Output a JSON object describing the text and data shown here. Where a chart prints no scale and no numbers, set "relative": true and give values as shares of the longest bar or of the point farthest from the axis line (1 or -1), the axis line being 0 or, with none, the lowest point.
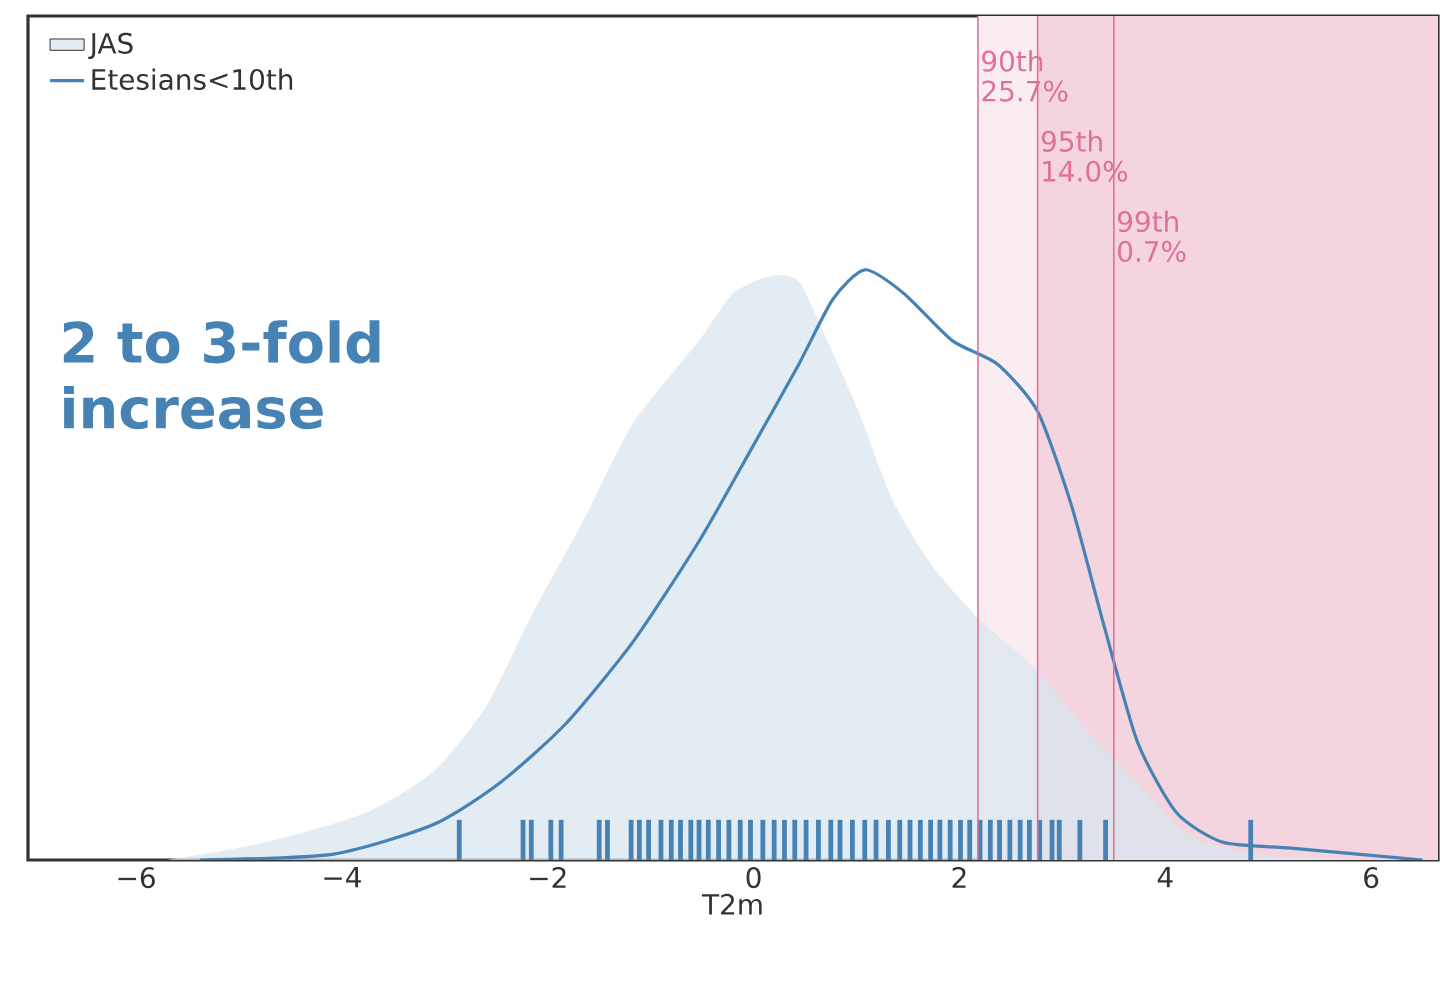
{
  "chart_data": {
    "type": "area",
    "relative": true,
    "xlabel": "T2m",
    "xlim": [
      -7.05,
      6.65
    ],
    "xticks": [
      {
        "value": -6,
        "label": "−6"
      },
      {
        "value": -4,
        "label": "−4"
      },
      {
        "value": -2,
        "label": "−2"
      },
      0,
      2,
      4,
      6
    ],
    "legend": "top left",
    "series": [
      {
        "name": "JAS",
        "color": "#dae5ef",
        "x": [
          -5.71,
          -4.74,
          -3.77,
          -3.11,
          -2.6,
          -2.14,
          -1.64,
          -1.17,
          -0.53,
          -0.2,
          0.18,
          0.44,
          0.69,
          1.02,
          1.35,
          1.73,
          2.18,
          2.76,
          3.29,
          3.73,
          4.25,
          4.89,
          5.86
        ],
        "values": [
          0,
          0.03,
          0.08,
          0.15,
          0.26,
          0.42,
          0.58,
          0.74,
          0.88,
          0.96,
          0.99,
          0.98,
          0.89,
          0.76,
          0.61,
          0.5,
          0.41,
          0.32,
          0.21,
          0.13,
          0.04,
          0.01,
          0
        ]
      },
      {
        "name": "Etesians<10th",
        "type": "line",
        "color": "#4682b4",
        "x": [
          -5.38,
          -4.08,
          -3.11,
          -2.47,
          -1.83,
          -1.17,
          -0.53,
          -0.01,
          0.44,
          0.77,
          1.08,
          1.46,
          1.93,
          2.37,
          2.76,
          3.09,
          3.4,
          3.73,
          4.11,
          4.56,
          5.22,
          6.5
        ],
        "values": [
          0,
          0.01,
          0.06,
          0.13,
          0.23,
          0.37,
          0.54,
          0.7,
          0.84,
          0.95,
          1.0,
          0.96,
          0.88,
          0.84,
          0.76,
          0.6,
          0.4,
          0.2,
          0.08,
          0.03,
          0.02,
          0
        ]
      },
      {
        "type": "bar",
        "color": "#4682b4",
        "x": [
          -2.86,
          -2.24,
          -2.16,
          -1.97,
          -1.87,
          -1.5,
          -1.42,
          -1.19,
          -1.11,
          -1.02,
          -0.9,
          -0.8,
          -0.71,
          -0.61,
          -0.53,
          -0.44,
          -0.34,
          -0.24,
          -0.13,
          -0.03,
          0.09,
          0.2,
          0.3,
          0.4,
          0.51,
          0.63,
          0.75,
          0.84,
          0.96,
          1.08,
          1.19,
          1.31,
          1.42,
          1.52,
          1.62,
          1.72,
          1.81,
          1.91,
          2.01,
          2.1,
          2.2,
          2.3,
          2.39,
          2.49,
          2.59,
          2.68,
          2.78,
          2.9,
          2.97,
          3.17,
          3.42,
          4.83
        ],
        "values": [
          0.068,
          0.068,
          0.068,
          0.068,
          0.068,
          0.068,
          0.068,
          0.068,
          0.068,
          0.068,
          0.068,
          0.068,
          0.068,
          0.068,
          0.068,
          0.068,
          0.068,
          0.068,
          0.068,
          0.068,
          0.068,
          0.068,
          0.068,
          0.068,
          0.068,
          0.068,
          0.068,
          0.068,
          0.068,
          0.068,
          0.068,
          0.068,
          0.068,
          0.068,
          0.068,
          0.068,
          0.068,
          0.068,
          0.068,
          0.068,
          0.068,
          0.068,
          0.068,
          0.068,
          0.068,
          0.068,
          0.068,
          0.068,
          0.068,
          0.068,
          0.068,
          0.068
        ]
      }
    ],
    "bands": [
      {
        "axis": "x",
        "from": 2.18,
        "to": 6.65,
        "color": "#faedf1"
      },
      {
        "axis": "x",
        "from": 2.76,
        "to": 6.65,
        "color": "#f4d5df"
      }
    ],
    "ref_lines": [
      {
        "axis": "x",
        "value": 2.18,
        "label": "90th 25.7%",
        "color": "#e0709a"
      },
      {
        "axis": "x",
        "value": 2.76,
        "label": "95th 14.0%",
        "color": "#e0709a"
      },
      {
        "axis": "x",
        "value": 3.5,
        "label": "99th 0.7%",
        "color": "#e0709a"
      }
    ],
    "annotations": [
      "2 to 3-fold increase"
    ]
  }
}
